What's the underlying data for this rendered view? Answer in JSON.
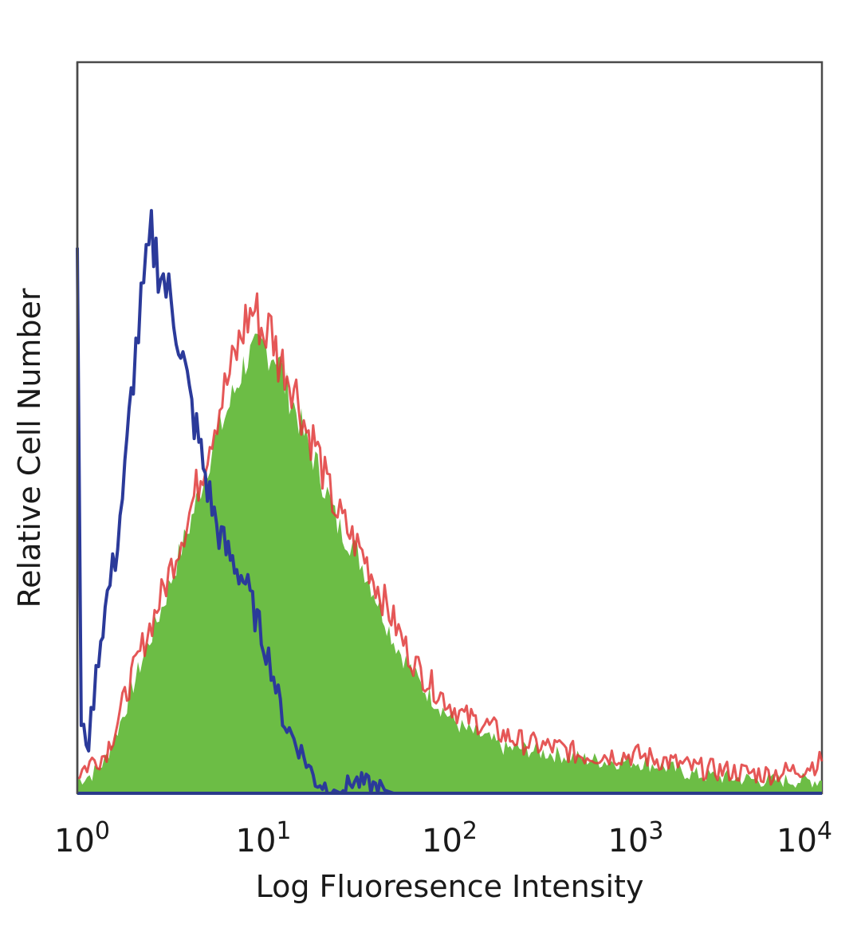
{
  "chart_data": {
    "type": "area",
    "title": "",
    "xlabel": "Log Fluoresence Intensity",
    "ylabel": "Relative Cell Number",
    "x_scale": "log",
    "xlim": [
      1,
      10000
    ],
    "ylim": [
      0,
      1
    ],
    "grid": false,
    "x_ticks": [
      {
        "base": "10",
        "exp": "0",
        "value": 1
      },
      {
        "base": "10",
        "exp": "1",
        "value": 10
      },
      {
        "base": "10",
        "exp": "2",
        "value": 100
      },
      {
        "base": "10",
        "exp": "3",
        "value": 1000
      },
      {
        "base": "10",
        "exp": "4",
        "value": 10000
      }
    ],
    "series": [
      {
        "style": "filled",
        "fill_color": "#6cbd45",
        "x": [
          1,
          1.2,
          1.4,
          1.6,
          1.8,
          2.0,
          2.3,
          2.6,
          3.0,
          3.4,
          4.0,
          4.6,
          5.3,
          6.0,
          7.0,
          8.0,
          9.0,
          10,
          11,
          12,
          13,
          15,
          17,
          19,
          22,
          25,
          30,
          35,
          40,
          50,
          60,
          70,
          80,
          100,
          120,
          150,
          200,
          250,
          300,
          400,
          500,
          700,
          1000,
          1500,
          2000,
          3000,
          5000,
          7000,
          10000
        ],
        "values": [
          0.02,
          0.03,
          0.05,
          0.09,
          0.13,
          0.17,
          0.22,
          0.26,
          0.31,
          0.36,
          0.42,
          0.48,
          0.54,
          0.58,
          0.63,
          0.68,
          0.69,
          0.7,
          0.69,
          0.69,
          0.64,
          0.6,
          0.55,
          0.52,
          0.47,
          0.42,
          0.39,
          0.35,
          0.31,
          0.24,
          0.2,
          0.17,
          0.15,
          0.12,
          0.1,
          0.09,
          0.07,
          0.07,
          0.065,
          0.06,
          0.055,
          0.05,
          0.05,
          0.04,
          0.03,
          0.025,
          0.02,
          0.02,
          0.02
        ]
      },
      {
        "style": "outline",
        "line_color": "#e03a3a",
        "x": [
          1,
          1.2,
          1.4,
          1.6,
          1.8,
          2.0,
          2.3,
          2.6,
          3.0,
          3.4,
          4.0,
          4.6,
          5.3,
          6.0,
          7.0,
          8.0,
          9.0,
          10,
          11,
          12,
          13,
          15,
          17,
          19,
          22,
          25,
          30,
          35,
          40,
          50,
          60,
          70,
          80,
          100,
          120,
          150,
          200,
          250,
          300,
          400,
          500,
          700,
          1000,
          1500,
          2000,
          3000,
          5000,
          7000,
          10000
        ],
        "values": [
          0.03,
          0.05,
          0.06,
          0.1,
          0.15,
          0.19,
          0.24,
          0.28,
          0.33,
          0.38,
          0.44,
          0.5,
          0.57,
          0.62,
          0.68,
          0.74,
          0.76,
          0.72,
          0.73,
          0.68,
          0.67,
          0.63,
          0.57,
          0.55,
          0.48,
          0.44,
          0.4,
          0.37,
          0.33,
          0.27,
          0.22,
          0.19,
          0.17,
          0.14,
          0.12,
          0.11,
          0.09,
          0.08,
          0.075,
          0.07,
          0.06,
          0.06,
          0.06,
          0.05,
          0.04,
          0.035,
          0.03,
          0.035,
          0.05
        ]
      },
      {
        "style": "outline",
        "line_color": "#2b3a9a",
        "x": [
          1,
          1.05,
          1.15,
          1.3,
          1.45,
          1.6,
          1.8,
          2.0,
          2.2,
          2.5,
          2.8,
          3.1,
          3.5,
          4.0,
          4.5,
          5.0,
          5.6,
          6.3,
          7.0,
          8.0,
          9.0,
          10,
          11,
          12,
          13,
          15,
          17,
          19,
          22,
          26,
          30,
          40,
          50
        ],
        "values": [
          0.87,
          0.1,
          0.08,
          0.22,
          0.31,
          0.37,
          0.5,
          0.66,
          0.76,
          0.87,
          0.82,
          0.78,
          0.72,
          0.62,
          0.55,
          0.48,
          0.42,
          0.38,
          0.36,
          0.33,
          0.28,
          0.24,
          0.2,
          0.15,
          0.11,
          0.08,
          0.05,
          0.02,
          0.01,
          0.0,
          0.02,
          0.01,
          0.0
        ]
      }
    ]
  }
}
